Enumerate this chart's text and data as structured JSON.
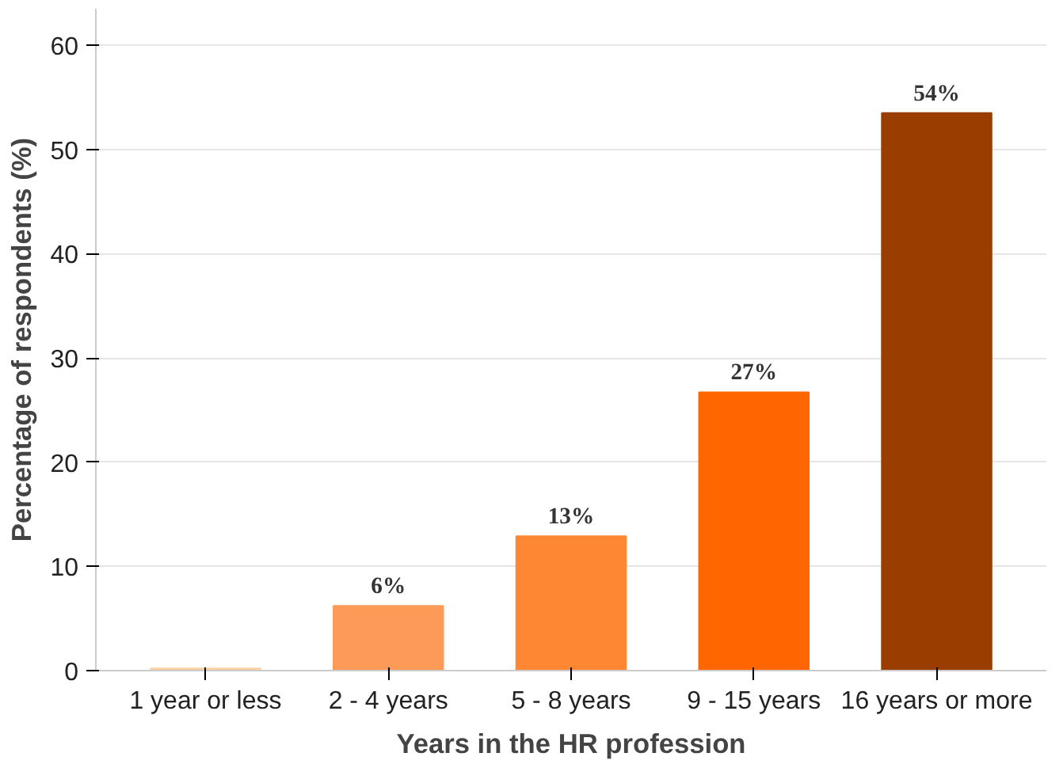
{
  "chart_data": {
    "type": "bar",
    "xlabel": "Years in the HR profession",
    "ylabel": "Percentage of respondents (%)",
    "categories": [
      "1 year or less",
      "2 - 4 years",
      "5 - 8 years",
      "9 - 15 years",
      "16 years or more"
    ],
    "values": [
      0.2,
      6.2,
      12.9,
      26.7,
      53.5
    ],
    "colors": [
      "#fdd0a2",
      "#fe9a58",
      "#fe8733",
      "#ff6600",
      "#993d00"
    ],
    "value_labels": [
      null,
      "6%",
      "13%",
      "27%",
      "54%"
    ],
    "ylim": [
      0,
      63.5
    ],
    "yticks": [
      0,
      10,
      20,
      30,
      40,
      50,
      60
    ],
    "grid": "y"
  }
}
